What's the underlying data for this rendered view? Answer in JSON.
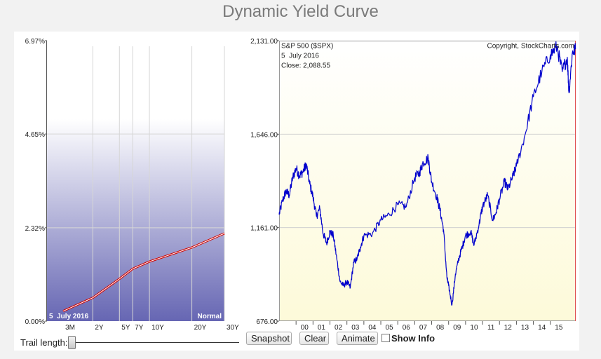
{
  "page": {
    "title": "Dynamic Yield Curve"
  },
  "controls": {
    "trail_label": "Trail length:",
    "trail_value": 0,
    "snapshot_label": "Snapshot",
    "clear_label": "Clear",
    "animate_label": "Animate",
    "show_info_label": "Show Info",
    "show_info_checked": false
  },
  "chart_data": [
    {
      "type": "line",
      "categories": [
        "3M",
        "2Y",
        "5Y",
        "7Y",
        "10Y",
        "20Y",
        "30Y"
      ],
      "series": [
        {
          "values": [
            0.25,
            0.58,
            1.05,
            1.3,
            1.48,
            1.83,
            2.18
          ]
        }
      ],
      "y_ticks": [
        "6.97%",
        "4.65%",
        "2.32%",
        "0.00%"
      ],
      "ylim": [
        0,
        6.97
      ],
      "date_label": "5  July 2016",
      "curve_label": "Normal",
      "colors": {
        "line": "#cc0000",
        "fill_top": "#ffffff",
        "fill_bottom": "#6666b3"
      }
    },
    {
      "type": "line",
      "legend": "S&P 500 ($SPX)",
      "copyright": "Copyright, StockCharts.com",
      "info_date": "5  July 2016",
      "info_close": "Close: 2,088.55",
      "y_ticks": [
        "2,131.00",
        "1,646.00",
        "1,161.00",
        "676.00"
      ],
      "ylim": [
        676,
        2131
      ],
      "x_ticks": [
        "00",
        "01",
        "02",
        "03",
        "04",
        "05",
        "06",
        "07",
        "08",
        "09",
        "10",
        "11",
        "12",
        "13",
        "14",
        "15"
      ],
      "xlim": [
        1999.0,
        2016.5
      ],
      "x": [
        1999.0,
        1999.2,
        1999.4,
        1999.6,
        1999.8,
        2000.0,
        2000.2,
        2000.4,
        2000.6,
        2000.8,
        2001.0,
        2001.2,
        2001.4,
        2001.6,
        2001.8,
        2002.0,
        2002.2,
        2002.4,
        2002.6,
        2002.8,
        2003.0,
        2003.2,
        2003.4,
        2003.6,
        2003.8,
        2004.0,
        2004.5,
        2005.0,
        2005.5,
        2006.0,
        2006.5,
        2007.0,
        2007.3,
        2007.5,
        2007.8,
        2008.0,
        2008.3,
        2008.5,
        2008.7,
        2008.9,
        2009.0,
        2009.2,
        2009.4,
        2009.6,
        2009.8,
        2010.0,
        2010.3,
        2010.5,
        2010.8,
        2011.0,
        2011.3,
        2011.6,
        2011.8,
        2012.0,
        2012.3,
        2012.5,
        2012.8,
        2013.0,
        2013.5,
        2014.0,
        2014.5,
        2015.0,
        2015.4,
        2015.7,
        2016.0,
        2016.1,
        2016.3,
        2016.5
      ],
      "series": [
        {
          "name": "S&P 500 ($SPX)",
          "values": [
            1229,
            1300,
            1350,
            1330,
            1420,
            1469,
            1430,
            1450,
            1490,
            1390,
            1320,
            1220,
            1260,
            1130,
            1080,
            1140,
            1120,
            1000,
            880,
            860,
            880,
            850,
            980,
            1000,
            1060,
            1120,
            1130,
            1200,
            1230,
            1280,
            1270,
            1420,
            1450,
            1500,
            1520,
            1400,
            1320,
            1250,
            1150,
            900,
            860,
            760,
            920,
            1000,
            1060,
            1120,
            1140,
            1070,
            1180,
            1270,
            1330,
            1200,
            1240,
            1310,
            1400,
            1360,
            1430,
            1480,
            1640,
            1840,
            1970,
            2058,
            2100,
            1970,
            2045,
            1860,
            2070,
            2088
          ]
        }
      ],
      "colors": {
        "line": "#0000cc",
        "fill_top": "#ffffff",
        "fill_bottom": "#fdfad9"
      }
    }
  ]
}
